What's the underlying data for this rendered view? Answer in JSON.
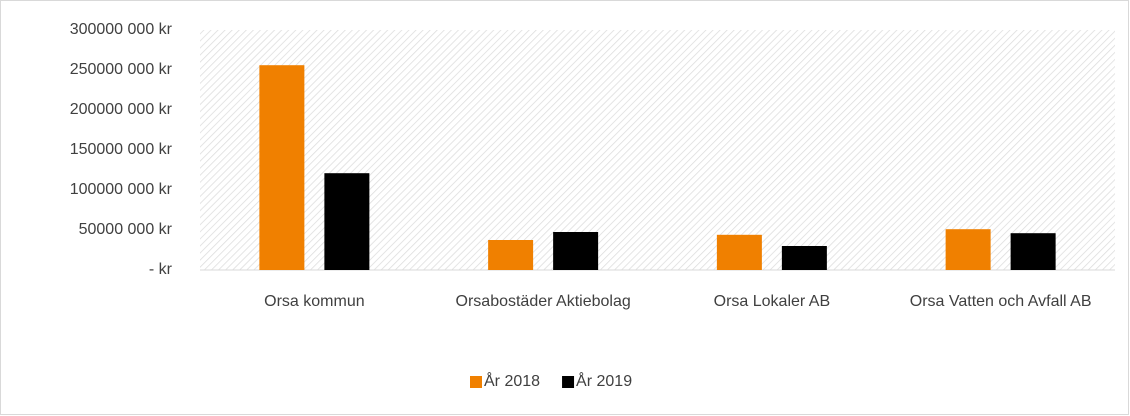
{
  "chart_data": {
    "type": "bar",
    "categories": [
      "Orsa kommun",
      "Orsabostäder Aktiebolag",
      "Orsa Lokaler AB",
      "Orsa Vatten och Avfall AB"
    ],
    "series": [
      {
        "name": "År 2018",
        "color": "#f08000",
        "values": [
          256000000,
          37500000,
          44000000,
          51000000
        ]
      },
      {
        "name": "År 2019",
        "color": "#000000",
        "values": [
          121000000,
          47500000,
          30000000,
          46000000
        ]
      }
    ],
    "ylim": [
      0,
      300000000
    ],
    "yticks": [
      {
        "value": 0,
        "label": "-  kr"
      },
      {
        "value": 50000000,
        "label": "50000 000 kr"
      },
      {
        "value": 100000000,
        "label": "100000 000 kr"
      },
      {
        "value": 150000000,
        "label": "150000 000 kr"
      },
      {
        "value": 200000000,
        "label": "200000 000 kr"
      },
      {
        "value": 250000000,
        "label": "250000 000 kr"
      },
      {
        "value": 300000000,
        "label": "300000 000 kr"
      }
    ],
    "legend": "bottom"
  }
}
